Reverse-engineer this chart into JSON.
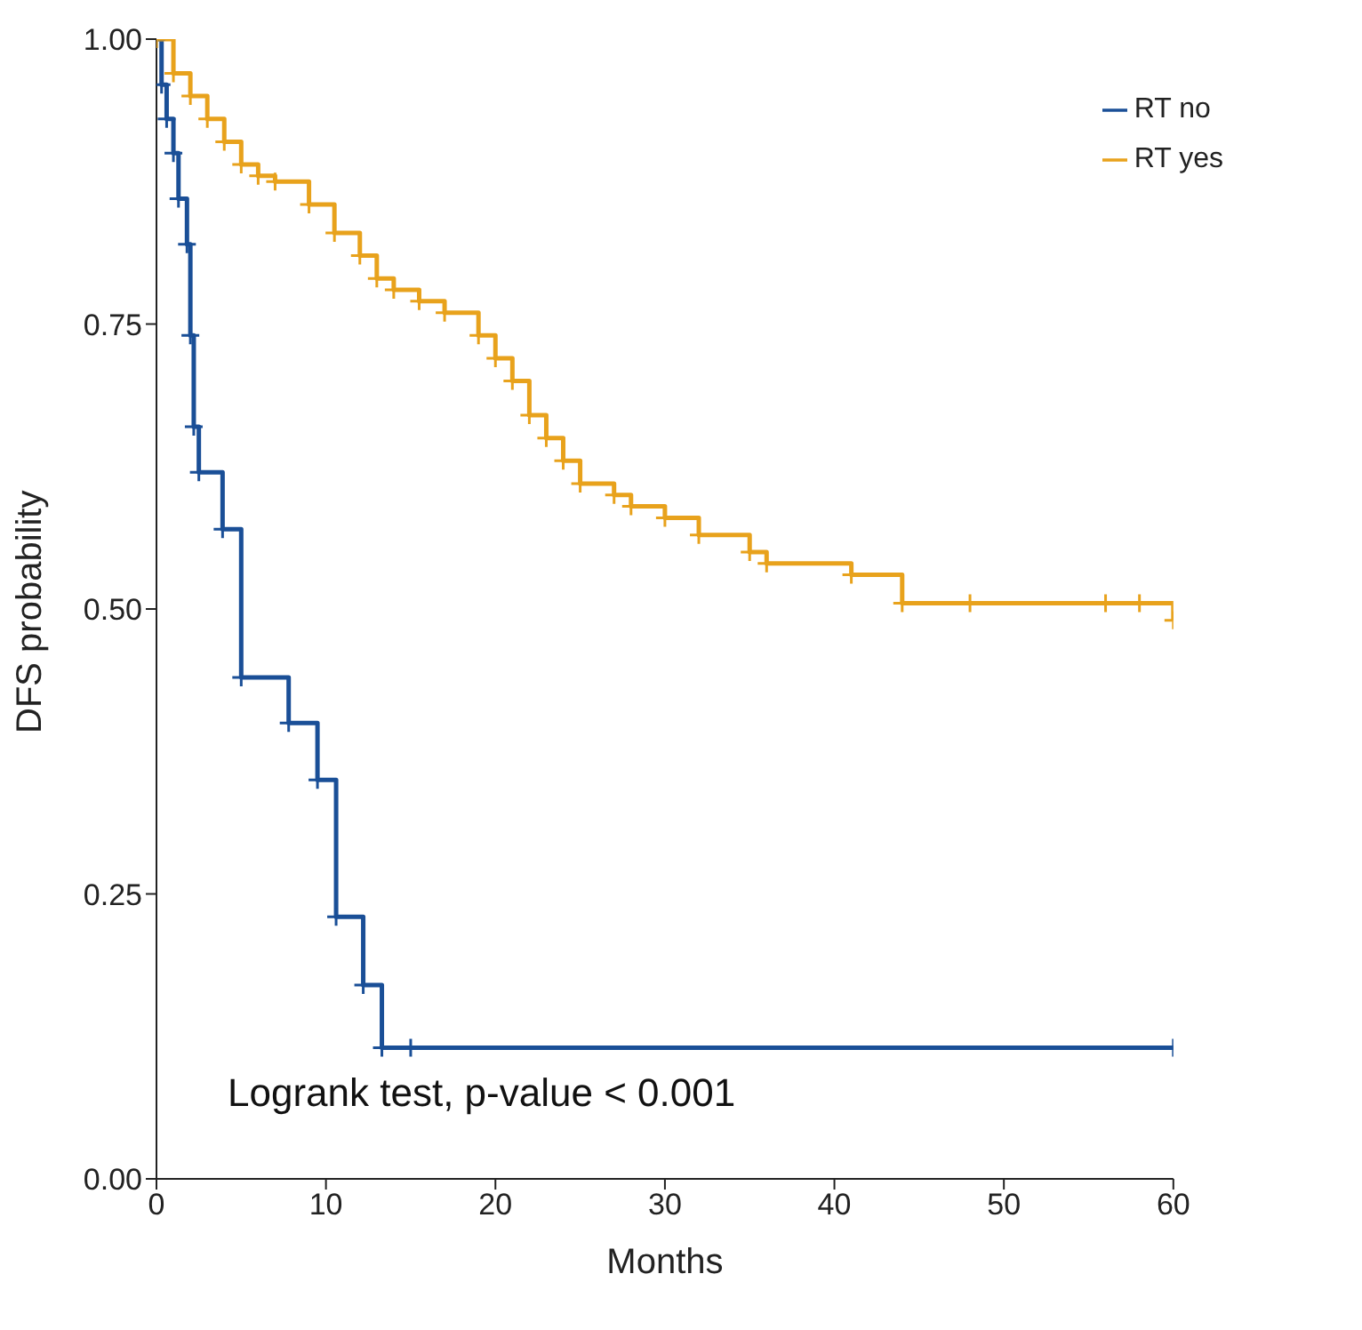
{
  "chart_data": {
    "type": "step",
    "xlabel": "Months",
    "ylabel": "DFS probability",
    "xlim": [
      0,
      60
    ],
    "xticks": [
      0,
      10,
      20,
      30,
      40,
      50,
      60
    ],
    "ylim": [
      0,
      1
    ],
    "yticks": [
      {
        "value": 0,
        "label": "0.00"
      },
      {
        "value": 0.25,
        "label": "0.25"
      },
      {
        "value": 0.5,
        "label": "0.50"
      },
      {
        "value": 0.75,
        "label": "0.75"
      },
      {
        "value": 1,
        "label": "1.00"
      }
    ],
    "legend": "top right",
    "marker": "cross",
    "line_style": "solid",
    "annotations": [
      "Logrank test, p-value < 0.001"
    ],
    "series": [
      {
        "name": "RT no",
        "color": "#1a4f97",
        "x": [
          0,
          0.3,
          0.6,
          1.0,
          1.3,
          1.8,
          2.0,
          2.2,
          2.5,
          3.9,
          5.0,
          7.8,
          9.5,
          10.6,
          12.2,
          13.3,
          15,
          60
        ],
        "values": [
          1,
          0.96,
          0.93,
          0.9,
          0.86,
          0.82,
          0.74,
          0.66,
          0.62,
          0.57,
          0.44,
          0.4,
          0.35,
          0.23,
          0.17,
          0.115,
          0.115,
          0.115
        ]
      },
      {
        "name": "RT yes",
        "color": "#e8a21c",
        "x": [
          0,
          1,
          2,
          3,
          4,
          5,
          6,
          7,
          9,
          10.5,
          12,
          13,
          14,
          15.5,
          17,
          19,
          20,
          21,
          22,
          23,
          24,
          25,
          27,
          28,
          30,
          32,
          35,
          36,
          41,
          44,
          48,
          56,
          58,
          60
        ],
        "values": [
          1,
          0.97,
          0.95,
          0.93,
          0.91,
          0.89,
          0.88,
          0.875,
          0.855,
          0.83,
          0.81,
          0.79,
          0.78,
          0.77,
          0.76,
          0.74,
          0.72,
          0.7,
          0.67,
          0.65,
          0.63,
          0.61,
          0.6,
          0.59,
          0.58,
          0.565,
          0.55,
          0.54,
          0.53,
          0.505,
          0.505,
          0.505,
          0.505,
          0.49
        ]
      }
    ]
  }
}
